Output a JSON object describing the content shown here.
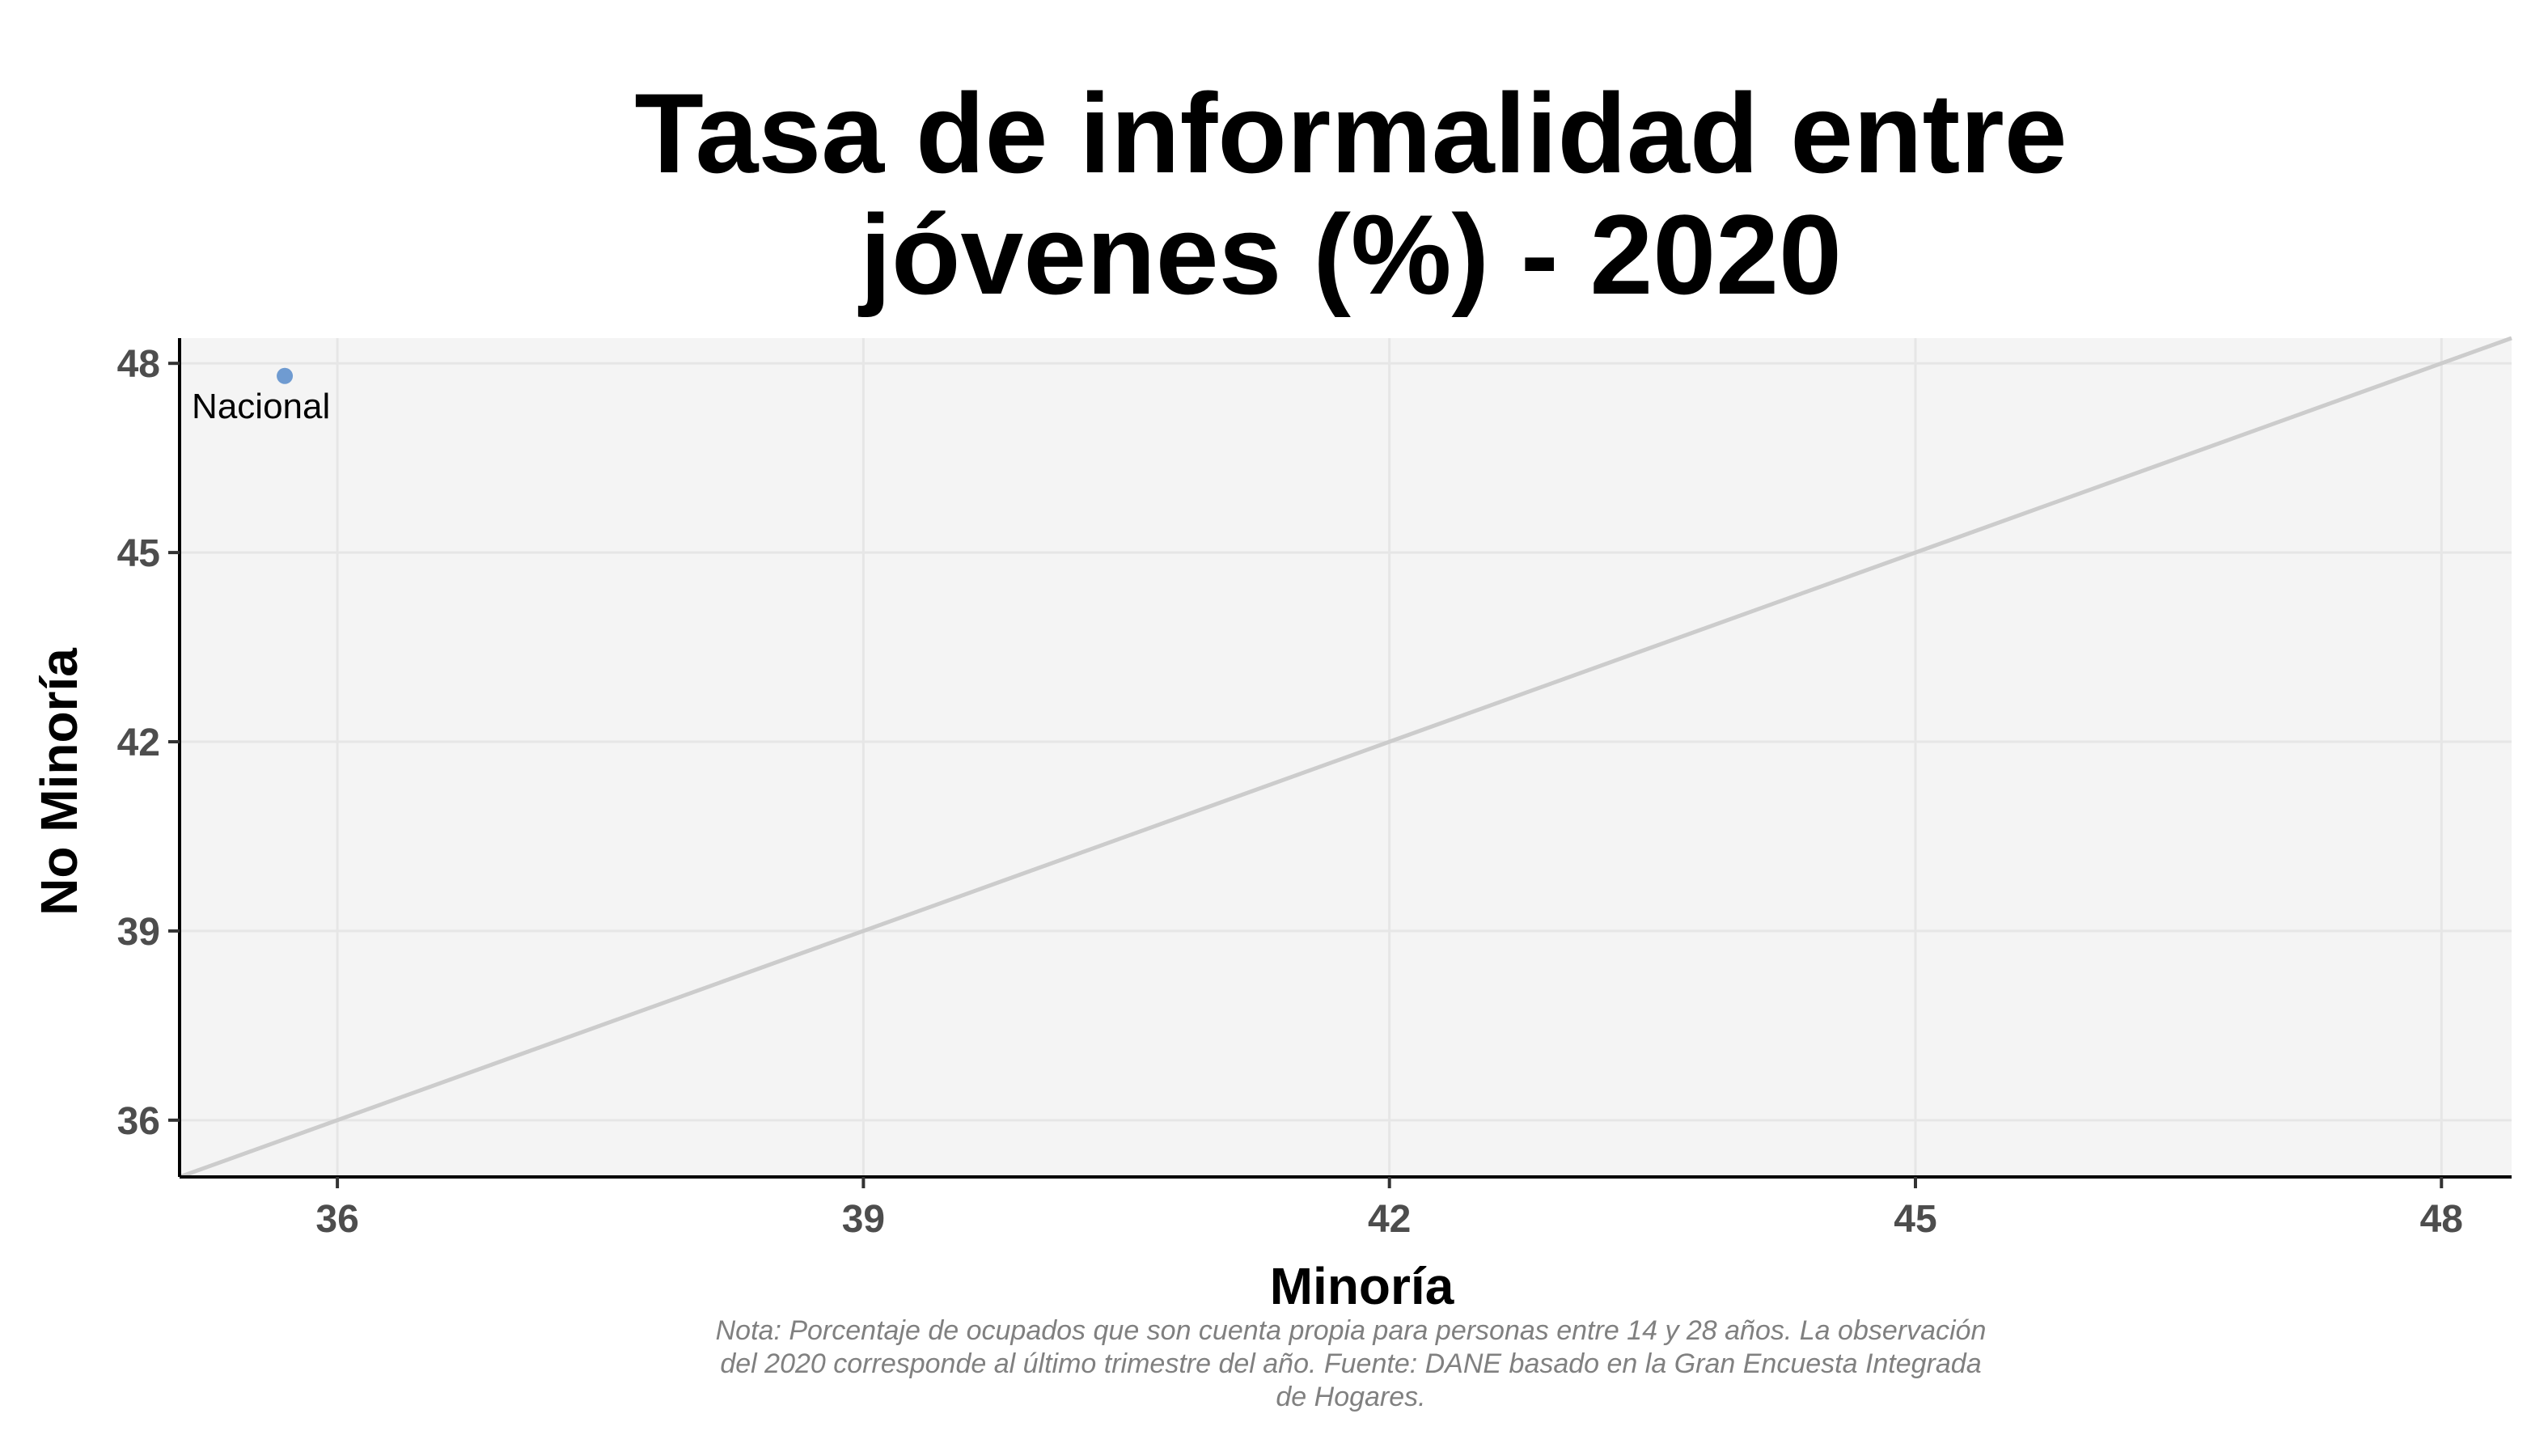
{
  "chart_data": {
    "type": "scatter",
    "title_lines": [
      "Tasa de informalidad entre",
      "jóvenes (%) - 2020"
    ],
    "xlabel": "Minoría",
    "ylabel": "No Minoría",
    "xlim": [
      35.1,
      48.4
    ],
    "ylim": [
      35.1,
      48.4
    ],
    "x_ticks": [
      36,
      39,
      42,
      45,
      48
    ],
    "y_ticks": [
      36,
      39,
      42,
      45,
      48
    ],
    "grid": true,
    "reference_line": {
      "type": "identity",
      "color": "#cccccc"
    },
    "points": [
      {
        "label": "Nacional",
        "x": 35.7,
        "y": 47.8,
        "color": "#6f9bd1"
      }
    ],
    "panel_background": "#f4f4f4",
    "caption_lines": [
      "Nota: Porcentaje de ocupados que son cuenta propia para personas entre 14 y 28 años. La observación",
      "del 2020 corresponde al último trimestre del año. Fuente: DANE basado en la Gran Encuesta Integrada",
      "de Hogares."
    ]
  }
}
